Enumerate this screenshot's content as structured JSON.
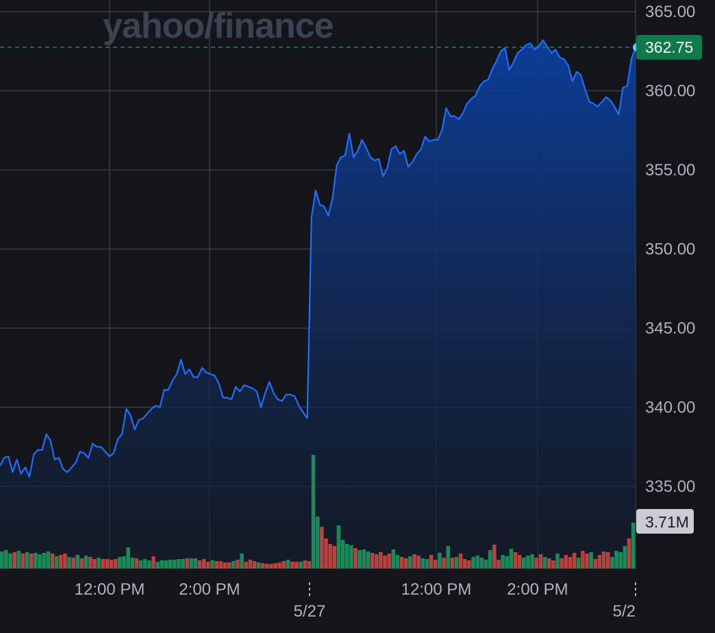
{
  "watermark": "yahoo/finance",
  "colors": {
    "line": "#1f6fff",
    "up": "#1a8a5a",
    "down": "#b5433f",
    "badge": "#0e7a4a",
    "grid": "#3a3d45",
    "dot": "#5ac8ff"
  },
  "chart_data": {
    "type": "area",
    "y_ticks": [
      "365.00",
      "360.00",
      "355.00",
      "350.00",
      "345.00",
      "340.00",
      "335.00"
    ],
    "y_tick_values": [
      365,
      360,
      355,
      350,
      345,
      340,
      335
    ],
    "ylim": [
      330.2,
      365.8
    ],
    "x_time_labels": [
      "12:00 PM",
      "2:00 PM",
      "12:00 PM",
      "2:00 PM"
    ],
    "date_labels": [
      "5/27",
      "5/2"
    ],
    "last_price": "362.75",
    "last_price_value": 362.75,
    "volume_label": "3.71M",
    "grid": true,
    "price": [
      336.3,
      336.8,
      336.9,
      335.9,
      336.7,
      335.8,
      336.2,
      335.6,
      337.0,
      337.3,
      337.3,
      338.3,
      337.9,
      336.7,
      336.8,
      336.1,
      335.9,
      336.2,
      336.5,
      337.2,
      337.1,
      336.8,
      337.7,
      337.5,
      337.5,
      337.2,
      336.9,
      337.1,
      338.0,
      338.3,
      339.9,
      339.5,
      338.6,
      339.2,
      339.3,
      339.6,
      339.9,
      340.1,
      340.0,
      341.1,
      341.1,
      341.7,
      342.1,
      343.0,
      342.1,
      342.4,
      341.9,
      341.9,
      342.5,
      342.2,
      342.1,
      342.0,
      341.5,
      340.6,
      340.6,
      340.5,
      341.3,
      341.0,
      341.4,
      341.3,
      341.2,
      341.0,
      340.0,
      340.9,
      341.6,
      340.9,
      340.5,
      340.4,
      340.8,
      340.8,
      340.7,
      340.1,
      339.7,
      339.3,
      352.0,
      353.7,
      352.8,
      352.7,
      352.1,
      353.2,
      355.3,
      355.8,
      355.9,
      357.3,
      355.8,
      356.2,
      356.9,
      356.4,
      355.8,
      355.6,
      355.7,
      354.6,
      355.1,
      356.3,
      356.5,
      356.0,
      356.2,
      355.2,
      355.5,
      356.0,
      356.3,
      357.1,
      356.8,
      356.9,
      356.9,
      357.5,
      358.9,
      358.4,
      358.4,
      358.2,
      358.6,
      359.2,
      359.5,
      359.7,
      360.3,
      360.6,
      360.7,
      361.4,
      361.9,
      362.5,
      362.7,
      361.3,
      361.8,
      362.4,
      362.6,
      362.9,
      363.0,
      362.6,
      362.8,
      363.2,
      362.8,
      362.4,
      362.6,
      362.1,
      362.0,
      361.6,
      360.6,
      361.2,
      361.0,
      360.1,
      359.3,
      359.2,
      359.0,
      359.3,
      359.6,
      359.4,
      359.0,
      358.5,
      360.2,
      360.3,
      362.0,
      362.75
    ],
    "volume_dir": [
      "up",
      "up",
      "up",
      "down",
      "up",
      "down",
      "up",
      "down",
      "up",
      "up",
      "up",
      "up",
      "down",
      "up",
      "down",
      "down",
      "up",
      "down",
      "up",
      "down",
      "up",
      "down",
      "down",
      "up",
      "down",
      "down",
      "down",
      "down",
      "up",
      "up",
      "up",
      "up",
      "down",
      "up",
      "up",
      "up",
      "down",
      "up",
      "up",
      "up",
      "up",
      "up",
      "up",
      "up",
      "down",
      "up",
      "up",
      "down",
      "down",
      "down",
      "up",
      "down",
      "down",
      "down",
      "down",
      "up",
      "down",
      "up",
      "down",
      "down",
      "down",
      "up",
      "down",
      "down",
      "down",
      "down",
      "down",
      "down",
      "up",
      "down",
      "down",
      "up",
      "down",
      "down",
      "up",
      "up",
      "down",
      "down",
      "down",
      "down",
      "up",
      "up",
      "up",
      "up",
      "down",
      "up",
      "up",
      "up",
      "down",
      "down",
      "down",
      "down",
      "down",
      "up",
      "up",
      "down",
      "down",
      "up",
      "down",
      "down",
      "up",
      "up",
      "down",
      "down",
      "up",
      "down",
      "up",
      "down",
      "up",
      "down",
      "down",
      "down",
      "up",
      "up",
      "up",
      "up",
      "up",
      "down",
      "down",
      "up",
      "up",
      "up",
      "down",
      "down",
      "up",
      "up",
      "up",
      "down",
      "down",
      "up",
      "down",
      "down",
      "up",
      "down",
      "down",
      "down",
      "down",
      "up",
      "down",
      "down",
      "up",
      "down",
      "down",
      "down",
      "down",
      "up",
      "up",
      "up",
      "up",
      "down",
      "up",
      "up",
      "up",
      "up",
      "up"
    ],
    "volume_h": [
      25,
      27,
      22,
      24,
      26,
      22,
      24,
      22,
      23,
      21,
      23,
      25,
      22,
      18,
      20,
      22,
      17,
      16,
      20,
      15,
      19,
      17,
      14,
      16,
      14,
      14,
      13,
      14,
      17,
      18,
      31,
      16,
      15,
      12,
      14,
      12,
      18,
      10,
      12,
      12,
      13,
      13,
      14,
      14,
      15,
      15,
      15,
      12,
      14,
      10,
      12,
      11,
      11,
      9,
      9,
      11,
      13,
      22,
      10,
      13,
      11,
      9,
      8,
      7,
      7,
      8,
      9,
      11,
      13,
      10,
      10,
      10,
      12,
      11,
      166,
      76,
      61,
      44,
      36,
      33,
      63,
      42,
      36,
      34,
      30,
      27,
      28,
      25,
      23,
      21,
      24,
      19,
      22,
      28,
      20,
      17,
      15,
      18,
      21,
      19,
      15,
      14,
      20,
      13,
      23,
      16,
      33,
      16,
      17,
      22,
      14,
      12,
      17,
      19,
      16,
      13,
      27,
      35,
      13,
      20,
      18,
      29,
      24,
      20,
      16,
      19,
      21,
      16,
      21,
      17,
      15,
      12,
      22,
      15,
      20,
      17,
      23,
      16,
      26,
      22,
      24,
      14,
      20,
      25,
      24,
      17,
      26,
      24,
      33,
      44,
      67
    ]
  }
}
